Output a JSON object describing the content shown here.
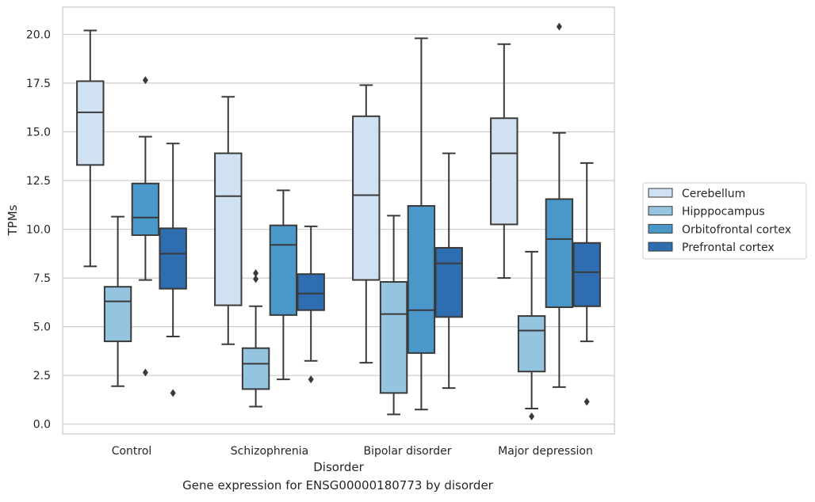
{
  "chart_data": {
    "type": "boxplot",
    "xlabel": "Disorder",
    "ylabel": "TPMs",
    "caption": "Gene expression for ENSG00000180773 by disorder",
    "ylim": [
      -0.5,
      21.4
    ],
    "yticks": [
      "0.0",
      "2.5",
      "5.0",
      "7.5",
      "10.0",
      "12.5",
      "15.0",
      "17.5",
      "20.0"
    ],
    "grid": true,
    "legend_position": "right",
    "categories": [
      "Control",
      "Schizophrenia",
      "Bipolar disorder",
      "Major depression"
    ],
    "series": [
      {
        "name": "Cerebellum",
        "color": "#d0e1f2",
        "boxes": [
          {
            "whislo": 8.1,
            "q1": 13.3,
            "med": 16.0,
            "q3": 17.6,
            "whishi": 20.2,
            "fliers": []
          },
          {
            "whislo": 4.1,
            "q1": 6.1,
            "med": 11.7,
            "q3": 13.9,
            "whishi": 16.8,
            "fliers": []
          },
          {
            "whislo": 3.15,
            "q1": 7.4,
            "med": 11.75,
            "q3": 15.8,
            "whishi": 17.4,
            "fliers": []
          },
          {
            "whislo": 7.5,
            "q1": 10.25,
            "med": 13.9,
            "q3": 15.7,
            "whishi": 19.5,
            "fliers": []
          }
        ]
      },
      {
        "name": "Hipppocampus",
        "color": "#94c4df",
        "boxes": [
          {
            "whislo": 1.95,
            "q1": 4.25,
            "med": 6.3,
            "q3": 7.05,
            "whishi": 10.65,
            "fliers": []
          },
          {
            "whislo": 0.9,
            "q1": 1.8,
            "med": 3.1,
            "q3": 3.9,
            "whishi": 6.05,
            "fliers": [
              7.45,
              7.75
            ]
          },
          {
            "whislo": 0.5,
            "q1": 1.6,
            "med": 5.65,
            "q3": 7.3,
            "whishi": 10.7,
            "fliers": []
          },
          {
            "whislo": 0.8,
            "q1": 2.7,
            "med": 4.8,
            "q3": 5.55,
            "whishi": 8.85,
            "fliers": [
              0.4
            ]
          }
        ]
      },
      {
        "name": "Orbitofrontal cortex",
        "color": "#4a98c9",
        "boxes": [
          {
            "whislo": 7.4,
            "q1": 9.7,
            "med": 10.6,
            "q3": 12.35,
            "whishi": 14.75,
            "fliers": [
              17.65,
              2.65
            ]
          },
          {
            "whislo": 2.3,
            "q1": 5.6,
            "med": 9.2,
            "q3": 10.2,
            "whishi": 12.0,
            "fliers": []
          },
          {
            "whislo": 0.75,
            "q1": 3.65,
            "med": 5.85,
            "q3": 11.2,
            "whishi": 19.8,
            "fliers": []
          },
          {
            "whislo": 1.9,
            "q1": 6.0,
            "med": 9.5,
            "q3": 11.55,
            "whishi": 14.95,
            "fliers": [
              20.4
            ]
          }
        ]
      },
      {
        "name": "Prefrontal cortex",
        "color": "#2e6db0",
        "boxes": [
          {
            "whislo": 4.5,
            "q1": 6.95,
            "med": 8.75,
            "q3": 10.05,
            "whishi": 14.4,
            "fliers": [
              1.6
            ]
          },
          {
            "whislo": 3.25,
            "q1": 5.85,
            "med": 6.7,
            "q3": 7.7,
            "whishi": 10.15,
            "fliers": [
              2.3
            ]
          },
          {
            "whislo": 1.85,
            "q1": 5.5,
            "med": 8.25,
            "q3": 9.05,
            "whishi": 13.9,
            "fliers": []
          },
          {
            "whislo": 4.25,
            "q1": 6.05,
            "med": 7.8,
            "q3": 9.3,
            "whishi": 13.4,
            "fliers": [
              1.15
            ]
          }
        ]
      }
    ]
  }
}
